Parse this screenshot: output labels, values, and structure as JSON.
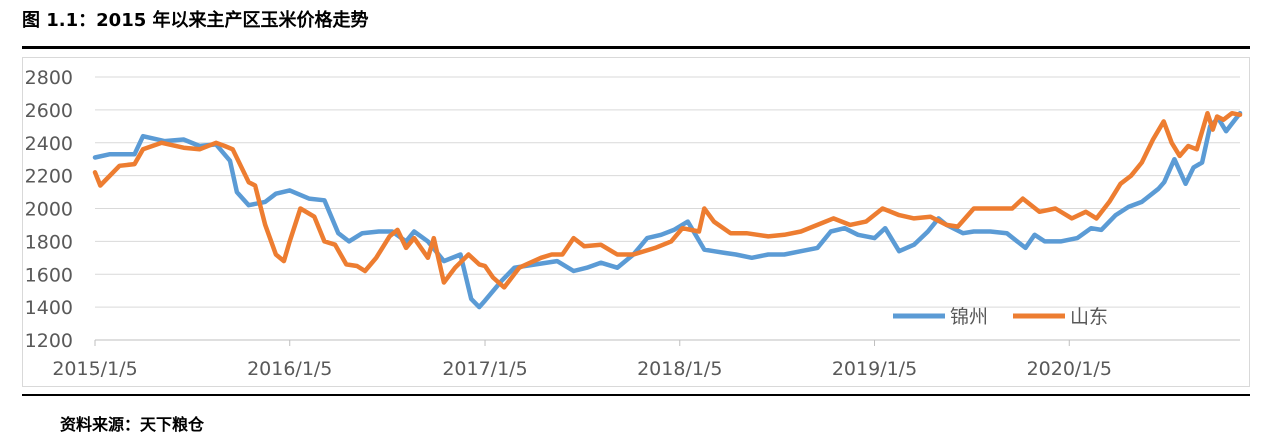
{
  "header": {
    "title": "图 1.1：2015 年以来主产区玉米价格走势"
  },
  "footer": {
    "source": "资料来源：天下粮仓"
  },
  "chart_data": {
    "type": "line",
    "title": "",
    "xlabel": "",
    "ylabel": "",
    "ylim": [
      1200,
      2800
    ],
    "yticks": [
      "1200",
      "1400",
      "1600",
      "1800",
      "2000",
      "2200",
      "2400",
      "2600",
      "2800"
    ],
    "xticks": [
      "2015/1/5",
      "2016/1/5",
      "2017/1/5",
      "2018/1/5",
      "2019/1/5",
      "2020/1/5"
    ],
    "xlim": [
      "2015-01-05",
      "2020-11-20"
    ],
    "grid": true,
    "legend": "bottom-right",
    "series": [
      {
        "name": "锦州",
        "color": "#5b9bd5",
        "x": [
          "2015-01-05",
          "2015-02-01",
          "2015-03-20",
          "2015-04-05",
          "2015-05-15",
          "2015-06-20",
          "2015-07-20",
          "2015-08-20",
          "2015-09-15",
          "2015-09-28",
          "2015-10-20",
          "2015-11-20",
          "2015-12-10",
          "2016-01-05",
          "2016-02-10",
          "2016-03-10",
          "2016-04-05",
          "2016-04-25",
          "2016-05-20",
          "2016-06-20",
          "2016-07-15",
          "2016-08-10",
          "2016-08-25",
          "2016-09-20",
          "2016-10-20",
          "2016-11-20",
          "2016-12-10",
          "2016-12-25",
          "2017-01-05",
          "2017-02-05",
          "2017-03-01",
          "2017-04-10",
          "2017-05-20",
          "2017-06-20",
          "2017-07-15",
          "2017-08-10",
          "2017-09-10",
          "2017-10-10",
          "2017-11-05",
          "2017-12-01",
          "2017-12-25",
          "2018-01-20",
          "2018-02-20",
          "2018-03-10",
          "2018-03-30",
          "2018-04-20",
          "2018-05-20",
          "2018-06-20",
          "2018-07-20",
          "2018-08-20",
          "2018-09-20",
          "2018-10-15",
          "2018-11-10",
          "2018-12-05",
          "2019-01-05",
          "2019-01-25",
          "2019-02-20",
          "2019-03-20",
          "2019-04-15",
          "2019-05-05",
          "2019-05-20",
          "2019-06-20",
          "2019-07-10",
          "2019-08-10",
          "2019-09-10",
          "2019-10-15",
          "2019-11-01",
          "2019-11-20",
          "2019-12-20",
          "2020-01-20",
          "2020-02-15",
          "2020-03-05",
          "2020-04-01",
          "2020-04-25",
          "2020-05-20",
          "2020-06-20",
          "2020-07-01",
          "2020-07-20",
          "2020-08-10",
          "2020-08-25",
          "2020-09-10",
          "2020-09-25",
          "2020-10-10",
          "2020-10-25",
          "2020-11-20"
        ],
        "values": [
          2310,
          2330,
          2330,
          2440,
          2410,
          2420,
          2380,
          2390,
          2290,
          2100,
          2020,
          2040,
          2090,
          2110,
          2060,
          2050,
          1850,
          1800,
          1850,
          1860,
          1860,
          1800,
          1860,
          1800,
          1680,
          1720,
          1450,
          1400,
          1440,
          1560,
          1640,
          1660,
          1680,
          1620,
          1640,
          1670,
          1640,
          1720,
          1820,
          1840,
          1870,
          1920,
          1750,
          1740,
          1730,
          1720,
          1700,
          1720,
          1720,
          1740,
          1760,
          1860,
          1880,
          1840,
          1820,
          1880,
          1740,
          1780,
          1860,
          1940,
          1900,
          1850,
          1860,
          1860,
          1850,
          1760,
          1840,
          1800,
          1800,
          1820,
          1880,
          1870,
          1960,
          2010,
          2040,
          2120,
          2160,
          2300,
          2150,
          2250,
          2280,
          2500,
          2550,
          2470,
          2580
        ]
      },
      {
        "name": "山东",
        "color": "#ed7d31",
        "x": [
          "2015-01-05",
          "2015-01-15",
          "2015-02-20",
          "2015-03-20",
          "2015-04-05",
          "2015-05-10",
          "2015-06-20",
          "2015-07-20",
          "2015-08-20",
          "2015-09-05",
          "2015-09-20",
          "2015-10-20",
          "2015-11-01",
          "2015-11-20",
          "2015-12-10",
          "2015-12-25",
          "2016-01-05",
          "2016-01-25",
          "2016-02-20",
          "2016-03-10",
          "2016-03-30",
          "2016-04-20",
          "2016-05-10",
          "2016-05-25",
          "2016-06-15",
          "2016-07-10",
          "2016-07-25",
          "2016-08-10",
          "2016-08-25",
          "2016-09-20",
          "2016-10-01",
          "2016-10-20",
          "2016-11-10",
          "2016-12-05",
          "2016-12-25",
          "2017-01-05",
          "2017-01-20",
          "2017-02-10",
          "2017-03-10",
          "2017-04-20",
          "2017-05-10",
          "2017-05-30",
          "2017-06-20",
          "2017-07-10",
          "2017-08-10",
          "2017-09-10",
          "2017-10-10",
          "2017-11-20",
          "2017-12-20",
          "2018-01-10",
          "2018-02-10",
          "2018-02-20",
          "2018-03-10",
          "2018-04-10",
          "2018-05-10",
          "2018-06-20",
          "2018-07-20",
          "2018-08-20",
          "2018-09-20",
          "2018-10-20",
          "2018-11-20",
          "2018-12-20",
          "2019-01-20",
          "2019-02-20",
          "2019-03-20",
          "2019-04-20",
          "2019-05-20",
          "2019-06-10",
          "2019-07-10",
          "2019-08-10",
          "2019-09-20",
          "2019-10-10",
          "2019-11-10",
          "2019-12-10",
          "2020-01-10",
          "2020-02-05",
          "2020-02-25",
          "2020-03-20",
          "2020-04-10",
          "2020-04-30",
          "2020-05-20",
          "2020-06-10",
          "2020-06-30",
          "2020-07-15",
          "2020-07-30",
          "2020-08-15",
          "2020-08-31",
          "2020-09-20",
          "2020-09-30",
          "2020-10-08",
          "2020-10-20",
          "2020-11-05",
          "2020-11-20"
        ],
        "values": [
          2220,
          2140,
          2260,
          2270,
          2360,
          2400,
          2370,
          2360,
          2400,
          2380,
          2360,
          2160,
          2140,
          1900,
          1720,
          1680,
          1800,
          2000,
          1950,
          1800,
          1780,
          1660,
          1650,
          1620,
          1700,
          1830,
          1870,
          1760,
          1820,
          1700,
          1820,
          1550,
          1640,
          1720,
          1660,
          1650,
          1580,
          1520,
          1640,
          1700,
          1720,
          1720,
          1820,
          1770,
          1780,
          1720,
          1720,
          1760,
          1800,
          1880,
          1860,
          2000,
          1920,
          1850,
          1850,
          1830,
          1840,
          1860,
          1900,
          1940,
          1900,
          1920,
          2000,
          1960,
          1940,
          1950,
          1900,
          1890,
          2000,
          2000,
          2000,
          2060,
          1980,
          2000,
          1940,
          1980,
          1940,
          2040,
          2150,
          2200,
          2280,
          2420,
          2530,
          2400,
          2320,
          2380,
          2360,
          2580,
          2480,
          2560,
          2540,
          2580,
          2570
        ]
      }
    ]
  }
}
